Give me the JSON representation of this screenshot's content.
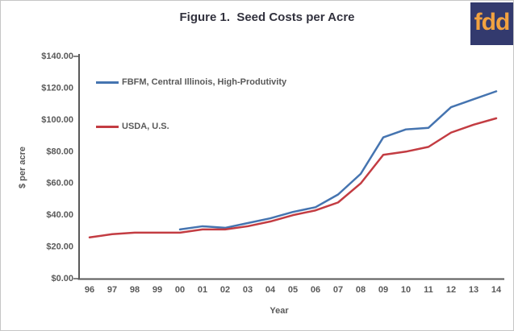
{
  "title": "Figure 1.  Seed Costs per Acre",
  "logo": {
    "text": "fdd",
    "bg_color": "#333a6e",
    "text_color": "#f2a240"
  },
  "colors": {
    "axis": "#595959",
    "label_text": "#595959",
    "title_text": "#32323e",
    "fbfm_line": "#4574b0",
    "usda_line": "#c33c42"
  },
  "chart_data": {
    "type": "line",
    "title": "Figure 1.  Seed Costs per Acre",
    "xlabel": "Year",
    "ylabel": "$ per acre",
    "categories": [
      "96",
      "97",
      "98",
      "99",
      "00",
      "01",
      "02",
      "03",
      "04",
      "05",
      "06",
      "07",
      "08",
      "09",
      "10",
      "11",
      "12",
      "13",
      "14"
    ],
    "ylim": [
      0,
      140
    ],
    "grid": false,
    "legend_position": "top-left-inside",
    "y_ticks": [
      {
        "label": "$0.00",
        "value": 0
      },
      {
        "label": "$20.00",
        "value": 20
      },
      {
        "label": "$40.00",
        "value": 40
      },
      {
        "label": "$60.00",
        "value": 60
      },
      {
        "label": "$80.00",
        "value": 80
      },
      {
        "label": "$100.00",
        "value": 100
      },
      {
        "label": "$120.00",
        "value": 120
      },
      {
        "label": "$140.00",
        "value": 140
      }
    ],
    "series": [
      {
        "name": "FBFM, Central Illinois, High-Produtivity",
        "color": "#4574b0",
        "values": [
          null,
          null,
          null,
          null,
          31,
          33,
          32,
          35,
          38,
          42,
          45,
          53,
          66,
          89,
          94,
          95,
          108,
          113,
          118
        ]
      },
      {
        "name": "USDA, U.S.",
        "color": "#c33c42",
        "values": [
          26,
          28,
          29,
          29,
          29,
          31,
          31,
          33,
          36,
          40,
          43,
          48,
          60,
          78,
          80,
          83,
          92,
          97,
          101
        ]
      }
    ]
  }
}
